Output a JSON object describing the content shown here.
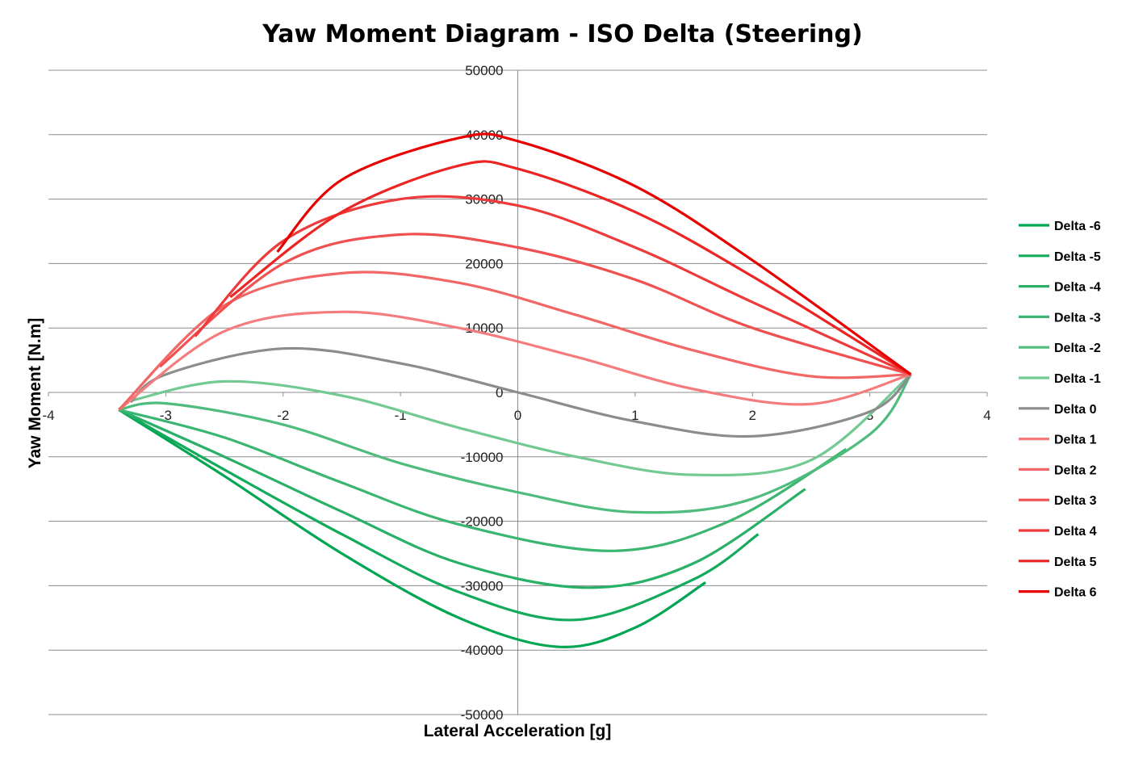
{
  "chart_data": {
    "type": "line",
    "title": "Yaw Moment Diagram - ISO Delta (Steering)",
    "xlabel": "Lateral Acceleration [g]",
    "ylabel": "Yaw Moment [N.m]",
    "xlim": [
      -4,
      4
    ],
    "ylim": [
      -50000,
      50000
    ],
    "x_ticks": [
      -4,
      -3,
      -2,
      -1,
      0,
      1,
      2,
      3,
      4
    ],
    "y_ticks": [
      50000,
      40000,
      30000,
      20000,
      10000,
      0,
      -10000,
      -20000,
      -30000,
      -40000,
      -50000
    ],
    "grid": "horizontal",
    "legend_position": "right",
    "series": [
      {
        "name": "Delta -6",
        "color": "#00a651",
        "x": [
          -3.4,
          -2.5,
          -1.5,
          -0.5,
          0.35,
          1.0,
          1.6
        ],
        "y": [
          -2700,
          -13000,
          -25000,
          -35000,
          -39500,
          -36500,
          -29500
        ]
      },
      {
        "name": "Delta -5",
        "color": "#13ab5b",
        "x": [
          -3.4,
          -2.5,
          -1.5,
          -0.5,
          0.5,
          1.5,
          2.05
        ],
        "y": [
          -2700,
          -12000,
          -22000,
          -31000,
          -35300,
          -29000,
          -22000
        ]
      },
      {
        "name": "Delta -4",
        "color": "#27b066",
        "x": [
          -3.4,
          -2.5,
          -1.5,
          -0.5,
          0.6,
          1.5,
          2.45
        ],
        "y": [
          -2700,
          -10000,
          -18500,
          -26500,
          -30300,
          -26500,
          -15000
        ]
      },
      {
        "name": "Delta -3",
        "color": "#3bb671",
        "x": [
          -3.4,
          -2.5,
          -1.5,
          -0.5,
          0.8,
          1.8,
          2.8
        ],
        "y": [
          -2700,
          -7000,
          -14000,
          -20500,
          -24600,
          -20000,
          -8800
        ]
      },
      {
        "name": "Delta -2",
        "color": "#4fbb7c",
        "x": [
          -3.4,
          -3.0,
          -2.0,
          -1.0,
          0.0,
          1.0,
          2.0,
          3.0,
          3.35
        ],
        "y": [
          -2700,
          -1700,
          -5000,
          -11000,
          -15500,
          -18600,
          -16500,
          -6500,
          2800
        ]
      },
      {
        "name": "Delta -1",
        "color": "#72c991",
        "x": [
          -3.3,
          -2.5,
          -1.5,
          -0.5,
          0.5,
          1.5,
          2.5,
          3.35
        ],
        "y": [
          -1300,
          1700,
          -500,
          -5500,
          -10000,
          -12800,
          -10500,
          2800
        ]
      },
      {
        "name": "Delta 0",
        "color": "#8c8c8c",
        "x": [
          -3.3,
          -3.0,
          -2.0,
          -1.0,
          0.0,
          1.0,
          2.0,
          3.0,
          3.35
        ],
        "y": [
          -1500,
          2800,
          6800,
          4500,
          0,
          -4500,
          -6800,
          -3000,
          2800
        ]
      },
      {
        "name": "Delta 1",
        "color": "#f47c7c",
        "x": [
          -3.4,
          -2.5,
          -1.5,
          -0.5,
          0.5,
          1.5,
          2.5,
          3.35
        ],
        "y": [
          -2700,
          9500,
          12500,
          10000,
          5500,
          500,
          -1800,
          2800
        ]
      },
      {
        "name": "Delta 2",
        "color": "#f26666",
        "x": [
          -3.4,
          -2.5,
          -1.5,
          -0.5,
          0.5,
          1.5,
          2.5,
          3.35
        ],
        "y": [
          -2700,
          13500,
          18500,
          17000,
          12000,
          6500,
          2500,
          2800
        ]
      },
      {
        "name": "Delta 3",
        "color": "#f05050",
        "x": [
          -3.05,
          -2.0,
          -1.0,
          0.0,
          1.0,
          2.0,
          3.35
        ],
        "y": [
          4000,
          20000,
          24500,
          22500,
          17500,
          10000,
          2800
        ]
      },
      {
        "name": "Delta 4",
        "color": "#ee3a3a",
        "x": [
          -2.75,
          -2.0,
          -1.0,
          0.0,
          1.0,
          2.0,
          3.35
        ],
        "y": [
          8700,
          23500,
          30000,
          29000,
          22500,
          14000,
          2800
        ]
      },
      {
        "name": "Delta 5",
        "color": "#ec2424",
        "x": [
          -2.45,
          -1.5,
          -0.5,
          0.0,
          1.0,
          2.0,
          3.35
        ],
        "y": [
          14800,
          28000,
          35200,
          34700,
          28000,
          18000,
          2800
        ]
      },
      {
        "name": "Delta 6",
        "color": "#e80000",
        "x": [
          -2.05,
          -1.5,
          -0.5,
          0.0,
          1.0,
          2.0,
          3.35
        ],
        "y": [
          21800,
          33000,
          39500,
          39000,
          32000,
          20500,
          2800
        ]
      }
    ]
  }
}
